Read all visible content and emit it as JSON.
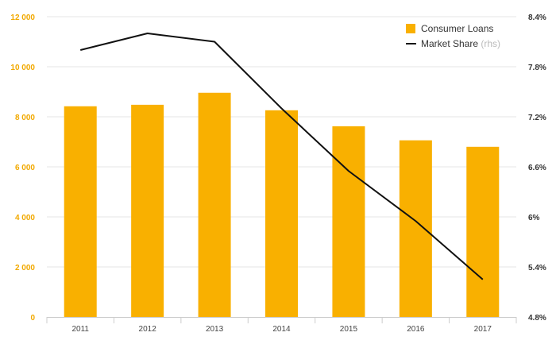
{
  "chart_data": {
    "type": "bar",
    "categories": [
      "2011",
      "2012",
      "2013",
      "2014",
      "2015",
      "2016",
      "2017"
    ],
    "series": [
      {
        "name": "Consumer Loans",
        "type": "bar",
        "axis": "left",
        "color": "#f9b000",
        "values": [
          8420,
          8480,
          8960,
          8260,
          7620,
          7060,
          6800
        ]
      },
      {
        "name": "Market Share",
        "name_suffix": "(rhs)",
        "type": "line",
        "axis": "right",
        "color": "#111111",
        "values": [
          8.0,
          8.2,
          8.1,
          7.3,
          6.55,
          5.95,
          5.25
        ]
      }
    ],
    "y_left": {
      "ylim": [
        0,
        12000
      ],
      "ticks": [
        0,
        2000,
        4000,
        6000,
        8000,
        10000,
        12000
      ],
      "tick_labels": [
        "0",
        "2 000",
        "4 000",
        "6 000",
        "8 000",
        "10 000",
        "12 000"
      ],
      "tick_color": "#f2a900"
    },
    "y_right": {
      "ylim": [
        4.8,
        8.4
      ],
      "ticks": [
        4.8,
        5.4,
        6.0,
        6.6,
        7.2,
        7.8,
        8.4
      ],
      "tick_labels": [
        "4.8%",
        "5.4%",
        "6%",
        "6.6%",
        "7.2%",
        "7.8%",
        "8.4%"
      ]
    },
    "grid": true,
    "legend_position": "top-right"
  }
}
